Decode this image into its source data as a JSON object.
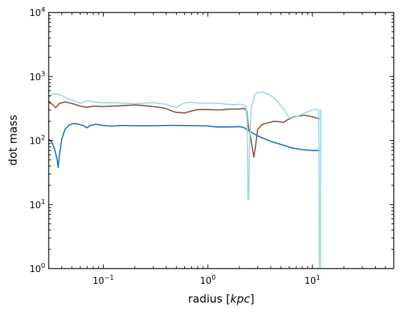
{
  "chart_data": {
    "type": "line",
    "xlabel": "radius [kpc]",
    "ylabel": "dot mass",
    "xscale": "log",
    "yscale": "log",
    "xlim": [
      0.03,
      60
    ],
    "ylim": [
      1,
      10000
    ],
    "grid": false,
    "x_ticks": [
      {
        "value": 0.1,
        "base": "10",
        "exp": "−1"
      },
      {
        "value": 1,
        "base": "10",
        "exp": "0"
      },
      {
        "value": 10,
        "base": "10",
        "exp": "1"
      }
    ],
    "y_ticks": [
      {
        "value": 1,
        "base": "10",
        "exp": "0"
      },
      {
        "value": 10,
        "base": "10",
        "exp": "1"
      },
      {
        "value": 100,
        "base": "10",
        "exp": "2"
      },
      {
        "value": 1000,
        "base": "10",
        "exp": "3"
      },
      {
        "value": 10000,
        "base": "10",
        "exp": "4"
      }
    ],
    "series": [
      {
        "color": "#1f77b4",
        "points": [
          [
            0.03,
            105
          ],
          [
            0.032,
            95
          ],
          [
            0.034,
            75
          ],
          [
            0.036,
            52
          ],
          [
            0.037,
            38
          ],
          [
            0.038,
            60
          ],
          [
            0.04,
            105
          ],
          [
            0.043,
            150
          ],
          [
            0.047,
            175
          ],
          [
            0.052,
            185
          ],
          [
            0.058,
            180
          ],
          [
            0.065,
            170
          ],
          [
            0.07,
            158
          ],
          [
            0.075,
            172
          ],
          [
            0.085,
            180
          ],
          [
            0.1,
            172
          ],
          [
            0.12,
            168
          ],
          [
            0.15,
            172
          ],
          [
            0.2,
            170
          ],
          [
            0.3,
            170
          ],
          [
            0.4,
            172
          ],
          [
            0.5,
            172
          ],
          [
            0.7,
            171
          ],
          [
            1.0,
            169
          ],
          [
            1.2,
            163
          ],
          [
            1.5,
            163
          ],
          [
            1.8,
            164
          ],
          [
            2.0,
            165
          ],
          [
            2.2,
            160
          ],
          [
            2.5,
            140
          ],
          [
            3.0,
            118
          ],
          [
            4.0,
            97
          ],
          [
            5.0,
            87
          ],
          [
            6.5,
            76
          ],
          [
            8.0,
            72
          ],
          [
            10.0,
            70
          ],
          [
            12.0,
            70
          ]
        ]
      },
      {
        "color": "#8c564b",
        "points": [
          [
            0.03,
            400
          ],
          [
            0.033,
            360
          ],
          [
            0.035,
            325
          ],
          [
            0.038,
            380
          ],
          [
            0.043,
            400
          ],
          [
            0.05,
            380
          ],
          [
            0.06,
            345
          ],
          [
            0.07,
            330
          ],
          [
            0.08,
            345
          ],
          [
            0.1,
            340
          ],
          [
            0.12,
            345
          ],
          [
            0.15,
            350
          ],
          [
            0.2,
            360
          ],
          [
            0.25,
            350
          ],
          [
            0.3,
            340
          ],
          [
            0.35,
            330
          ],
          [
            0.4,
            315
          ],
          [
            0.45,
            290
          ],
          [
            0.5,
            275
          ],
          [
            0.6,
            270
          ],
          [
            0.7,
            290
          ],
          [
            0.8,
            305
          ],
          [
            1.0,
            305
          ],
          [
            1.3,
            300
          ],
          [
            1.6,
            310
          ],
          [
            2.0,
            310
          ],
          [
            2.2,
            320
          ],
          [
            2.35,
            290
          ],
          [
            2.45,
            160
          ],
          [
            2.55,
            120
          ],
          [
            2.65,
            80
          ],
          [
            2.75,
            55
          ],
          [
            2.85,
            80
          ],
          [
            3.0,
            150
          ],
          [
            3.3,
            178
          ],
          [
            3.8,
            190
          ],
          [
            4.3,
            200
          ],
          [
            4.8,
            197
          ],
          [
            5.3,
            192
          ],
          [
            5.8,
            212
          ],
          [
            6.5,
            232
          ],
          [
            7.5,
            243
          ],
          [
            8.5,
            248
          ],
          [
            10.0,
            235
          ],
          [
            12.0,
            215
          ]
        ]
      },
      {
        "color": "#9edae5",
        "points": [
          [
            0.03,
            470
          ],
          [
            0.032,
            530
          ],
          [
            0.035,
            535
          ],
          [
            0.04,
            510
          ],
          [
            0.045,
            455
          ],
          [
            0.05,
            430
          ],
          [
            0.055,
            400
          ],
          [
            0.06,
            380
          ],
          [
            0.07,
            420
          ],
          [
            0.08,
            400
          ],
          [
            0.1,
            390
          ],
          [
            0.12,
            390
          ],
          [
            0.15,
            385
          ],
          [
            0.2,
            375
          ],
          [
            0.3,
            390
          ],
          [
            0.4,
            370
          ],
          [
            0.45,
            340
          ],
          [
            0.5,
            330
          ],
          [
            0.6,
            390
          ],
          [
            0.7,
            395
          ],
          [
            0.8,
            385
          ],
          [
            1.0,
            380
          ],
          [
            1.2,
            385
          ],
          [
            1.5,
            370
          ],
          [
            1.8,
            360
          ],
          [
            2.0,
            370
          ],
          [
            2.2,
            360
          ],
          [
            2.3,
            345
          ],
          [
            2.38,
            200
          ],
          [
            2.42,
            12
          ],
          [
            2.46,
            12
          ],
          [
            2.5,
            80
          ],
          [
            2.6,
            320
          ],
          [
            2.8,
            520
          ],
          [
            3.0,
            570
          ],
          [
            3.3,
            570
          ],
          [
            3.8,
            530
          ],
          [
            4.3,
            460
          ],
          [
            4.8,
            380
          ],
          [
            5.3,
            310
          ],
          [
            5.8,
            245
          ],
          [
            6.3,
            222
          ],
          [
            7.0,
            235
          ],
          [
            8.0,
            260
          ],
          [
            9.0,
            280
          ],
          [
            10.0,
            300
          ],
          [
            11.0,
            310
          ],
          [
            11.5,
            300
          ],
          [
            11.7,
            0.5
          ],
          [
            11.9,
            0.5
          ],
          [
            12.0,
            310
          ]
        ]
      }
    ]
  }
}
